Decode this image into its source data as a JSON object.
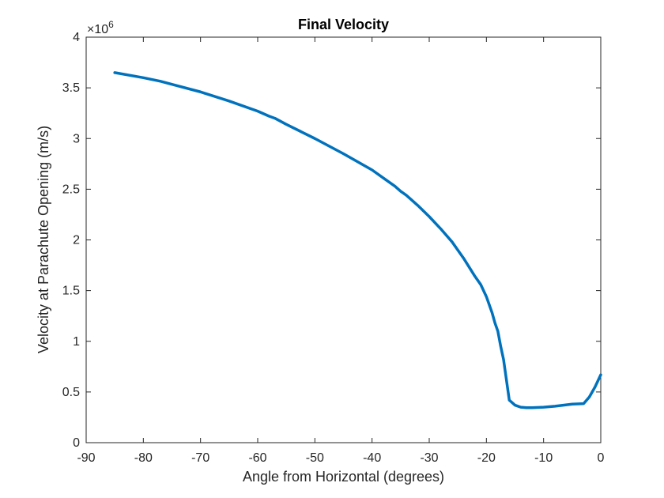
{
  "chart_data": {
    "type": "line",
    "title": "Final Velocity",
    "xlabel": "Angle from Horizontal (degrees)",
    "ylabel": "Velocity at Parachute Opening (m/s)",
    "xlim": [
      -90,
      0
    ],
    "ylim": [
      0,
      4
    ],
    "xticks": [
      -90,
      -80,
      -70,
      -60,
      -50,
      -40,
      -30,
      -20,
      -10,
      0
    ],
    "xtick_labels": [
      "-90",
      "-80",
      "-70",
      "-60",
      "-50",
      "-40",
      "-30",
      "-20",
      "-10",
      "0"
    ],
    "yticks": [
      0,
      0.5,
      1,
      1.5,
      2,
      2.5,
      3,
      3.5,
      4
    ],
    "ytick_labels": [
      "0",
      "0.5",
      "1",
      "1.5",
      "2",
      "2.5",
      "3",
      "3.5",
      "4"
    ],
    "y_multiplier": {
      "base": "×10",
      "exponent": "6"
    },
    "grid": false,
    "line_color": "#0072bd",
    "series": [
      {
        "x": [
          -85,
          -80,
          -77,
          -75,
          -70,
          -65,
          -60,
          -58,
          -57,
          -55,
          -50,
          -45,
          -40,
          -38,
          -36,
          -35,
          -34,
          -32,
          -30,
          -28,
          -26,
          -25,
          -24,
          -22,
          -21,
          -20,
          -19,
          -18.5,
          -18,
          -17.5,
          -17,
          -16,
          -15,
          -14,
          -13,
          -12,
          -10,
          -8,
          -5,
          -3,
          -2,
          -1,
          0
        ],
        "y": [
          3.65,
          3.6,
          3.565,
          3.535,
          3.46,
          3.37,
          3.27,
          3.22,
          3.2,
          3.14,
          3.0,
          2.85,
          2.69,
          2.61,
          2.53,
          2.48,
          2.44,
          2.34,
          2.23,
          2.11,
          1.98,
          1.9,
          1.82,
          1.64,
          1.56,
          1.44,
          1.28,
          1.18,
          1.1,
          0.95,
          0.82,
          0.42,
          0.37,
          0.35,
          0.345,
          0.345,
          0.35,
          0.36,
          0.38,
          0.385,
          0.45,
          0.55,
          0.67
        ]
      }
    ]
  }
}
